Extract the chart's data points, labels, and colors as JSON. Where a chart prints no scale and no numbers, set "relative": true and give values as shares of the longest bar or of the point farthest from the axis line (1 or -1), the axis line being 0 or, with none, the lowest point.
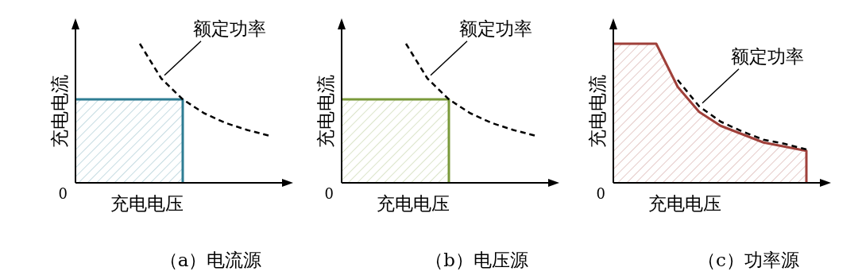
{
  "chart_data": [
    {
      "type": "area",
      "title": "（a）电流源",
      "xlabel": "充电电压",
      "ylabel": "充电电流",
      "relative": true,
      "annotations": [
        "额定功率",
        "0"
      ],
      "categories": [
        null,
        null,
        null,
        null,
        null,
        null,
        null,
        null,
        null,
        null
      ],
      "series": [
        {
          "type": "area",
          "color": "#2e7d93",
          "values": [
            0.6,
            0.6,
            0.6,
            0.6,
            0.6,
            0.6,
            null,
            null,
            null,
            null
          ]
        },
        {
          "type": "line",
          "color": "#000000",
          "line_style": "dashed",
          "values": [
            null,
            null,
            null,
            1,
            0.75,
            0.6,
            0.5,
            0.43,
            0.38,
            0.34
          ]
        }
      ]
    },
    {
      "type": "area",
      "title": "（b）电压源",
      "xlabel": "充电电压",
      "ylabel": "充电电流",
      "relative": true,
      "annotations": [
        "额定功率",
        "0"
      ],
      "categories": [
        null,
        null,
        null,
        null,
        null,
        null,
        null,
        null,
        null,
        null
      ],
      "series": [
        {
          "type": "area",
          "color": "#7a9a3a",
          "values": [
            0.6,
            0.6,
            0.6,
            0.6,
            0.6,
            0.6,
            null,
            null,
            null,
            null
          ]
        },
        {
          "type": "line",
          "color": "#000000",
          "line_style": "dashed",
          "values": [
            null,
            null,
            null,
            1,
            0.75,
            0.6,
            0.5,
            0.43,
            0.38,
            0.34
          ]
        }
      ]
    },
    {
      "type": "area",
      "title": "（c）功率源",
      "xlabel": "充电电压",
      "ylabel": "充电电流",
      "relative": true,
      "annotations": [
        "额定功率",
        "0"
      ],
      "categories": [
        null,
        null,
        null,
        null,
        null,
        null,
        null,
        null,
        null,
        null
      ],
      "series": [
        {
          "type": "area",
          "color": "#a0403a",
          "values": [
            1,
            1,
            1,
            0.69,
            0.51,
            0.41,
            0.35,
            0.29,
            0.26,
            0.23
          ]
        },
        {
          "type": "line",
          "color": "#000000",
          "line_style": "dashed",
          "values": [
            null,
            null,
            null,
            0.74,
            0.55,
            0.44,
            0.37,
            0.31,
            0.28,
            0.24
          ]
        }
      ]
    }
  ]
}
